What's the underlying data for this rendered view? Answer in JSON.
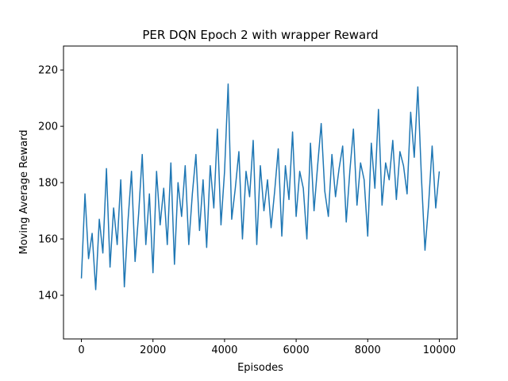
{
  "chart_data": {
    "type": "line",
    "title": "PER DQN Epoch 2 with wrapper Reward",
    "xlabel": "Episodes",
    "ylabel": "Moving Average Reward",
    "xlim": [
      -500,
      10500
    ],
    "ylim": [
      124.5,
      228.5
    ],
    "xticks": [
      0,
      2000,
      4000,
      6000,
      8000,
      10000
    ],
    "yticks": [
      140,
      160,
      180,
      200,
      220
    ],
    "grid": false,
    "legend": "none",
    "line_color": "#1f77b4",
    "series": [
      {
        "x": [
          0,
          100,
          200,
          300,
          400,
          500,
          600,
          700,
          800,
          900,
          1000,
          1100,
          1200,
          1300,
          1400,
          1500,
          1600,
          1700,
          1800,
          1900,
          2000,
          2100,
          2200,
          2300,
          2400,
          2500,
          2600,
          2700,
          2800,
          2900,
          3000,
          3100,
          3200,
          3300,
          3400,
          3500,
          3600,
          3700,
          3800,
          3900,
          4000,
          4100,
          4200,
          4300,
          4400,
          4500,
          4600,
          4700,
          4800,
          4900,
          5000,
          5100,
          5200,
          5300,
          5400,
          5500,
          5600,
          5700,
          5800,
          5900,
          6000,
          6100,
          6200,
          6300,
          6400,
          6500,
          6600,
          6700,
          6800,
          6900,
          7000,
          7100,
          7200,
          7300,
          7400,
          7500,
          7600,
          7700,
          7800,
          7900,
          8000,
          8100,
          8200,
          8300,
          8400,
          8500,
          8600,
          8700,
          8800,
          8900,
          9000,
          9100,
          9200,
          9300,
          9400,
          9500,
          9600,
          9700,
          9800,
          9900,
          10000
        ],
        "y": [
          146,
          176,
          153,
          162,
          142,
          167,
          155,
          185,
          150,
          171,
          158,
          181,
          143,
          166,
          184,
          152,
          169,
          190,
          158,
          176,
          148,
          184,
          165,
          178,
          158,
          187,
          151,
          180,
          168,
          186,
          158,
          176,
          190,
          163,
          181,
          157,
          186,
          171,
          199,
          165,
          184,
          215,
          167,
          178,
          191,
          160,
          184,
          175,
          195,
          158,
          186,
          170,
          181,
          164,
          177,
          192,
          161,
          186,
          174,
          198,
          168,
          184,
          178,
          160,
          194,
          170,
          186,
          201,
          177,
          168,
          190,
          175,
          185,
          193,
          166,
          184,
          199,
          172,
          187,
          181,
          161,
          194,
          178,
          206,
          172,
          187,
          181,
          195,
          174,
          191,
          186,
          176,
          205,
          189,
          214,
          182,
          156,
          172,
          193,
          171,
          184
        ]
      }
    ]
  }
}
